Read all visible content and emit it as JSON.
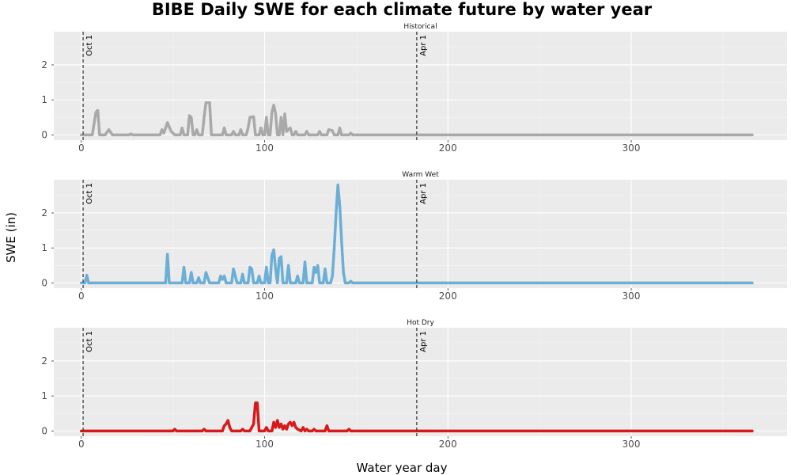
{
  "chart_data": {
    "type": "line",
    "title": "BIBE Daily SWE for each climate future by water year",
    "xlabel": "Water year day",
    "ylabel": "SWE (in)",
    "xlim": [
      -15,
      385
    ],
    "ylim": [
      -0.15,
      2.95
    ],
    "x_ticks": [
      0,
      100,
      200,
      300
    ],
    "y_ticks": [
      0,
      1,
      2
    ],
    "grid": true,
    "legend": "none",
    "vlines": [
      {
        "x": 1,
        "label": "Oct 1"
      },
      {
        "x": 183,
        "label": "Apr 1"
      }
    ],
    "panels": [
      {
        "strip_label": "Historical",
        "color": "#a9a9a9",
        "points": [
          [
            0,
            0
          ],
          [
            6,
            0
          ],
          [
            8,
            0.65
          ],
          [
            9,
            0.7
          ],
          [
            10,
            0
          ],
          [
            13,
            0
          ],
          [
            15,
            0.15
          ],
          [
            17,
            0
          ],
          [
            26,
            0
          ],
          [
            27,
            0.03
          ],
          [
            28,
            0
          ],
          [
            43,
            0
          ],
          [
            44,
            0.15
          ],
          [
            45,
            0.05
          ],
          [
            47,
            0.35
          ],
          [
            49,
            0.1
          ],
          [
            51,
            0
          ],
          [
            54,
            0
          ],
          [
            55,
            0.2
          ],
          [
            56,
            0
          ],
          [
            58,
            0
          ],
          [
            59,
            0.55
          ],
          [
            60,
            0.5
          ],
          [
            61,
            0
          ],
          [
            62,
            0
          ],
          [
            63,
            0.15
          ],
          [
            64,
            0
          ],
          [
            66,
            0
          ],
          [
            67,
            0.5
          ],
          [
            68,
            0.92
          ],
          [
            70,
            0.92
          ],
          [
            71,
            0
          ],
          [
            77,
            0
          ],
          [
            78,
            0.2
          ],
          [
            79,
            0
          ],
          [
            82,
            0
          ],
          [
            83,
            0.1
          ],
          [
            84,
            0
          ],
          [
            86,
            0
          ],
          [
            87,
            0.15
          ],
          [
            88,
            0
          ],
          [
            90,
            0
          ],
          [
            91,
            0.2
          ],
          [
            92,
            0.5
          ],
          [
            94,
            0.52
          ],
          [
            95,
            0
          ],
          [
            97,
            0
          ],
          [
            98,
            0.2
          ],
          [
            99,
            0
          ],
          [
            100,
            0
          ],
          [
            101,
            0.5
          ],
          [
            102,
            0
          ],
          [
            103,
            0
          ],
          [
            104,
            0.65
          ],
          [
            105,
            0.85
          ],
          [
            106,
            0.6
          ],
          [
            107,
            0
          ],
          [
            108,
            0
          ],
          [
            109,
            0.5
          ],
          [
            110,
            0
          ],
          [
            111,
            0.6
          ],
          [
            112,
            0.1
          ],
          [
            114,
            0.2
          ],
          [
            115,
            0
          ],
          [
            116,
            0
          ],
          [
            117,
            0.1
          ],
          [
            118,
            0
          ],
          [
            122,
            0
          ],
          [
            123,
            0.1
          ],
          [
            124,
            0
          ],
          [
            129,
            0
          ],
          [
            130,
            0.1
          ],
          [
            131,
            0
          ],
          [
            134,
            0
          ],
          [
            135,
            0.15
          ],
          [
            137,
            0.12
          ],
          [
            138,
            0
          ],
          [
            140,
            0
          ],
          [
            141,
            0.2
          ],
          [
            142,
            0
          ],
          [
            146,
            0
          ],
          [
            147,
            0.05
          ],
          [
            148,
            0
          ],
          [
            366,
            0
          ]
        ]
      },
      {
        "strip_label": "Warm Wet",
        "color": "#6baed6",
        "points": [
          [
            0,
            0
          ],
          [
            2,
            0
          ],
          [
            3,
            0.22
          ],
          [
            4,
            0
          ],
          [
            46,
            0
          ],
          [
            47,
            0.82
          ],
          [
            48,
            0
          ],
          [
            55,
            0
          ],
          [
            56,
            0.45
          ],
          [
            57,
            0
          ],
          [
            59,
            0
          ],
          [
            60,
            0.3
          ],
          [
            61,
            0
          ],
          [
            63,
            0
          ],
          [
            64,
            0.15
          ],
          [
            65,
            0
          ],
          [
            67,
            0
          ],
          [
            68,
            0.3
          ],
          [
            69,
            0.15
          ],
          [
            70,
            0
          ],
          [
            75,
            0
          ],
          [
            76,
            0.2
          ],
          [
            77,
            0.1
          ],
          [
            78,
            0.2
          ],
          [
            79,
            0
          ],
          [
            82,
            0
          ],
          [
            83,
            0.4
          ],
          [
            84,
            0.2
          ],
          [
            85,
            0
          ],
          [
            87,
            0
          ],
          [
            88,
            0.25
          ],
          [
            89,
            0
          ],
          [
            91,
            0
          ],
          [
            92,
            0.45
          ],
          [
            93,
            0.4
          ],
          [
            94,
            0
          ],
          [
            96,
            0
          ],
          [
            97,
            0.2
          ],
          [
            98,
            0
          ],
          [
            100,
            0
          ],
          [
            101,
            0.45
          ],
          [
            102,
            0
          ],
          [
            103,
            0
          ],
          [
            104,
            0.8
          ],
          [
            105,
            0.95
          ],
          [
            106,
            0.4
          ],
          [
            107,
            0
          ],
          [
            108,
            0.7
          ],
          [
            109,
            0.75
          ],
          [
            110,
            0
          ],
          [
            112,
            0
          ],
          [
            113,
            0.5
          ],
          [
            114,
            0
          ],
          [
            117,
            0
          ],
          [
            118,
            0.2
          ],
          [
            119,
            0
          ],
          [
            121,
            0
          ],
          [
            122,
            0.6
          ],
          [
            123,
            0
          ],
          [
            126,
            0
          ],
          [
            127,
            0.45
          ],
          [
            128,
            0.3
          ],
          [
            129,
            0.5
          ],
          [
            130,
            0
          ],
          [
            132,
            0
          ],
          [
            133,
            0.4
          ],
          [
            134,
            0
          ],
          [
            136,
            0
          ],
          [
            137,
            0.2
          ],
          [
            138,
            1.0
          ],
          [
            139,
            2.0
          ],
          [
            140,
            2.8
          ],
          [
            141,
            2.2
          ],
          [
            142,
            1.2
          ],
          [
            143,
            0.3
          ],
          [
            144,
            0
          ],
          [
            146,
            0
          ],
          [
            147,
            0.05
          ],
          [
            148,
            0
          ],
          [
            366,
            0
          ]
        ]
      },
      {
        "strip_label": "Hot Dry",
        "color": "#d7191c",
        "points": [
          [
            0,
            0
          ],
          [
            50,
            0
          ],
          [
            51,
            0.05
          ],
          [
            52,
            0
          ],
          [
            66,
            0
          ],
          [
            67,
            0.05
          ],
          [
            68,
            0
          ],
          [
            77,
            0
          ],
          [
            78,
            0.15
          ],
          [
            79,
            0.2
          ],
          [
            80,
            0.3
          ],
          [
            81,
            0.1
          ],
          [
            82,
            0
          ],
          [
            87,
            0
          ],
          [
            88,
            0.05
          ],
          [
            89,
            0
          ],
          [
            92,
            0
          ],
          [
            93,
            0.1
          ],
          [
            94,
            0.2
          ],
          [
            95,
            0.8
          ],
          [
            96,
            0.8
          ],
          [
            97,
            0
          ],
          [
            100,
            0
          ],
          [
            101,
            0.1
          ],
          [
            102,
            0
          ],
          [
            104,
            0
          ],
          [
            105,
            0.25
          ],
          [
            106,
            0.1
          ],
          [
            107,
            0.3
          ],
          [
            108,
            0.1
          ],
          [
            109,
            0.2
          ],
          [
            110,
            0.05
          ],
          [
            111,
            0.15
          ],
          [
            112,
            0.05
          ],
          [
            113,
            0.2
          ],
          [
            114,
            0.25
          ],
          [
            115,
            0.15
          ],
          [
            116,
            0.25
          ],
          [
            117,
            0.1
          ],
          [
            118,
            0.05
          ],
          [
            120,
            0
          ],
          [
            121,
            0.1
          ],
          [
            122,
            0
          ],
          [
            123,
            0.05
          ],
          [
            124,
            0
          ],
          [
            126,
            0
          ],
          [
            127,
            0.05
          ],
          [
            128,
            0
          ],
          [
            133,
            0
          ],
          [
            134,
            0.15
          ],
          [
            135,
            0
          ],
          [
            145,
            0
          ],
          [
            146,
            0.05
          ],
          [
            147,
            0
          ],
          [
            366,
            0
          ]
        ]
      }
    ]
  }
}
